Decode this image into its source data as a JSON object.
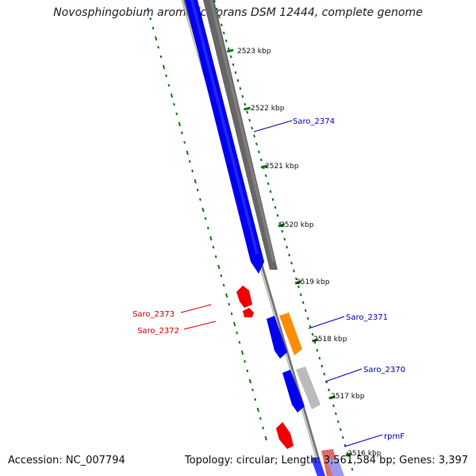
{
  "title": "Novosphingobium aromaticivorans DSM 12444, complete genome",
  "footer": {
    "accession": "Accession: NC_007794",
    "summary": "Topology: circular; Length: 3,561,584 bp; Genes: 3,397"
  },
  "colors": {
    "forward_cds": "#0000ee",
    "reverse_cds": "#666666",
    "rna_gene": "#ee0000",
    "orange_feature": "#ff8c00",
    "light_feature": "#bbbbbb",
    "backbone": "#777777",
    "ticks": "#117711",
    "blue_label": "#0000bb",
    "red_label": "#cc0000"
  },
  "scale_ticks": [
    "2523 kbp",
    "2522 kbp",
    "2521 kbp",
    "2520 kbp",
    "2519 kbp",
    "2518 kbp",
    "2517 kbp",
    "2516 kbp"
  ],
  "gene_labels": [
    {
      "id": "saro-2374",
      "text": "Saro_2374",
      "color": "blue"
    },
    {
      "id": "saro-2373",
      "text": "Saro_2373",
      "color": "red"
    },
    {
      "id": "saro-2372",
      "text": "Saro_2372",
      "color": "red"
    },
    {
      "id": "saro-2371",
      "text": "Saro_2371",
      "color": "blue"
    },
    {
      "id": "saro-2370",
      "text": "Saro_2370",
      "color": "blue"
    },
    {
      "id": "rpmf",
      "text": "rpmF",
      "color": "blue"
    }
  ]
}
